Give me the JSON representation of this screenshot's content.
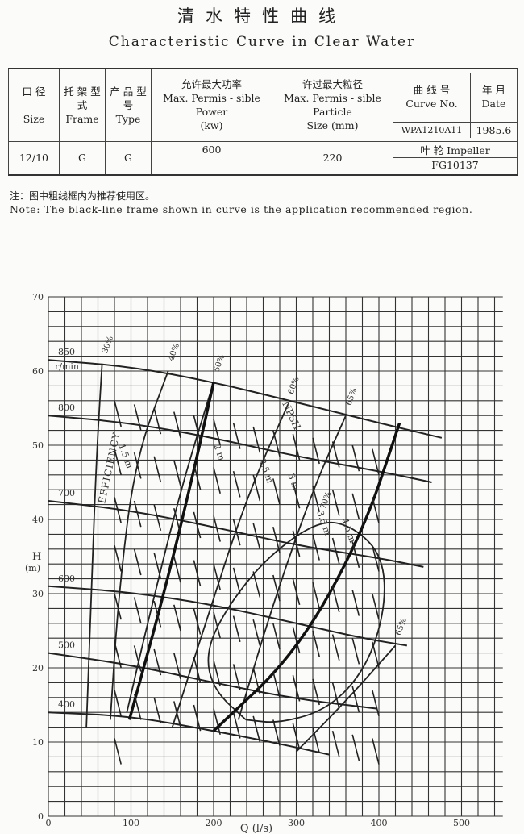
{
  "title_cn": "清水特性曲线",
  "title_en": "Characteristic Curve in Clear Water",
  "table": {
    "size_cn": "口 径",
    "size_en": "Size",
    "frame_cn": "托 架 型 式",
    "frame_en": "Frame",
    "type_cn": "产 品 型 号",
    "type_en": "Type",
    "power_cn": "允许最大功率",
    "power_en": "Max. Permis - sible Power",
    "power_unit": "(kw)",
    "particle_cn": "许过最大粒径",
    "particle_en": "Max. Permis - sible Particle",
    "particle_unit": "Size (mm)",
    "curve_cn": "曲 线 号",
    "curve_en": "Curve No.",
    "date_cn": "年 月",
    "date_en": "Date",
    "curve_no": "WPA1210A11",
    "date": "1985.6",
    "size": "12/10",
    "frame": "G",
    "type": "G",
    "power": "600",
    "particle": "220",
    "impeller_label": "叶 轮 Impeller",
    "impeller": "FG10137"
  },
  "note_cn": "注：图中粗线框内为推荐使用区。",
  "note_en": "Note: The black-line frame shown in curve is the application recommended region.",
  "chart_data": {
    "type": "line",
    "xlabel": "Q (l/s)",
    "ylabel": "H",
    "ylabel_unit": "(m)",
    "xlim": [
      0,
      550
    ],
    "ylim": [
      0,
      70
    ],
    "xticks": [
      0,
      100,
      200,
      300,
      400,
      500
    ],
    "yticks": [
      0,
      10,
      20,
      30,
      40,
      50,
      60,
      70
    ],
    "grid": true,
    "speed_unit": "r/min",
    "speed_curves": [
      {
        "name": "850",
        "points": [
          [
            0,
            61.5
          ],
          [
            100,
            60.6
          ],
          [
            200,
            58.5
          ],
          [
            300,
            55.8
          ],
          [
            400,
            53
          ],
          [
            476,
            51
          ]
        ]
      },
      {
        "name": "800",
        "points": [
          [
            0,
            54
          ],
          [
            100,
            53
          ],
          [
            200,
            51
          ],
          [
            300,
            48.5
          ],
          [
            400,
            46.5
          ],
          [
            464,
            45
          ]
        ]
      },
      {
        "name": "700",
        "points": [
          [
            0,
            42.5
          ],
          [
            100,
            41.2
          ],
          [
            200,
            39
          ],
          [
            300,
            36.5
          ],
          [
            400,
            34.8
          ],
          [
            454,
            33.6
          ]
        ]
      },
      {
        "name": "600",
        "points": [
          [
            0,
            31
          ],
          [
            100,
            30.2
          ],
          [
            200,
            28.5
          ],
          [
            300,
            26
          ],
          [
            380,
            24
          ],
          [
            434,
            23
          ]
        ]
      },
      {
        "name": "500",
        "points": [
          [
            0,
            22
          ],
          [
            100,
            20.4
          ],
          [
            200,
            18
          ],
          [
            300,
            15.8
          ],
          [
            398,
            14.5
          ]
        ]
      },
      {
        "name": "400",
        "points": [
          [
            0,
            14
          ],
          [
            100,
            13.5
          ],
          [
            200,
            11.5
          ],
          [
            270,
            10
          ],
          [
            340,
            8.3
          ]
        ]
      }
    ],
    "efficiency_label": "EFFICIENCY",
    "efficiency_curves": [
      {
        "name": "30%",
        "points": [
          [
            46,
            12
          ],
          [
            52,
            30
          ],
          [
            58,
            48
          ],
          [
            65,
            61
          ]
        ]
      },
      {
        "name": "40%",
        "points": [
          [
            75,
            13
          ],
          [
            85,
            30
          ],
          [
            105,
            48
          ],
          [
            145,
            60
          ]
        ]
      },
      {
        "name": "50%",
        "points": [
          [
            95,
            14
          ],
          [
            120,
            26
          ],
          [
            160,
            44
          ],
          [
            200,
            58.5
          ]
        ]
      },
      {
        "name": "60%",
        "points": [
          [
            150,
            12
          ],
          [
            190,
            26
          ],
          [
            240,
            43
          ],
          [
            290,
            55.5
          ]
        ]
      },
      {
        "name": "65%",
        "points": [
          [
            230,
            13
          ],
          [
            270,
            28
          ],
          [
            320,
            44
          ],
          [
            360,
            54
          ]
        ]
      },
      {
        "name": "65%",
        "points": [
          [
            300,
            8.7
          ],
          [
            360,
            15.5
          ],
          [
            420,
            23
          ]
        ]
      },
      {
        "name": "70%",
        "points": [
          [
            239,
            13
          ],
          [
            200,
            17
          ],
          [
            190,
            22
          ],
          [
            215,
            28
          ],
          [
            265,
            35
          ],
          [
            329,
            40
          ],
          [
            370,
            39
          ],
          [
            405,
            35
          ],
          [
            408,
            28
          ],
          [
            385,
            20
          ],
          [
            340,
            14.5
          ],
          [
            280,
            12.5
          ],
          [
            239,
            13
          ]
        ]
      }
    ],
    "recommended_region": [
      [
        98,
        13
      ],
      [
        140,
        30
      ],
      [
        175,
        46
      ],
      [
        200,
        58.5
      ],
      [
        200,
        11.5
      ],
      [
        300,
        22
      ],
      [
        380,
        38
      ],
      [
        425,
        53
      ]
    ],
    "npsh_label": "NPSH",
    "npsh_labels": [
      "1.5 m",
      "2 m",
      "2.5 m",
      "3 m",
      "3.5 m",
      "4.5 m"
    ]
  }
}
